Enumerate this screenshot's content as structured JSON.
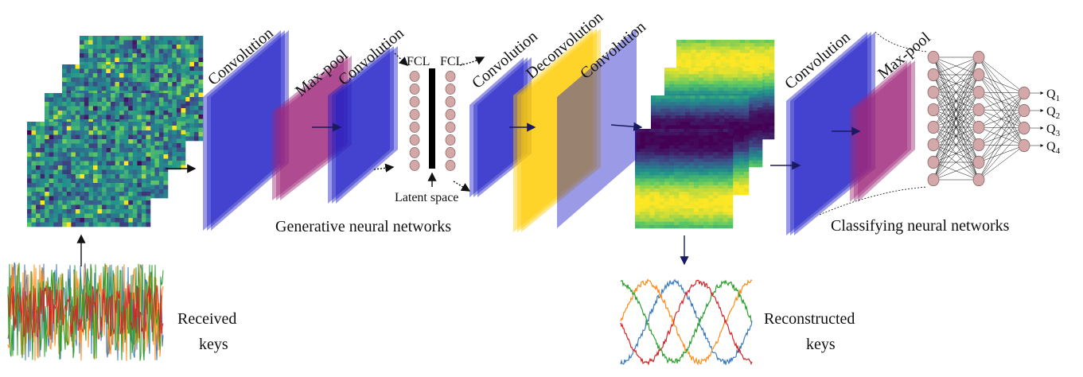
{
  "generative": {
    "title": "Generative neural networks",
    "layers": [
      "Convolution",
      "Max-pool",
      "Convolution",
      "FCL",
      "FCL",
      "Convolution",
      "Deconvolution",
      "Convolution"
    ],
    "latent": "Latent space"
  },
  "classifying": {
    "title": "Classifying neural networks",
    "layers": [
      "Convolution",
      "Max-pool"
    ],
    "outputs": [
      {
        "base": "Q",
        "sub": "1"
      },
      {
        "base": "Q",
        "sub": "2"
      },
      {
        "base": "Q",
        "sub": "3"
      },
      {
        "base": "Q",
        "sub": "4"
      }
    ]
  },
  "received": [
    "Received",
    "keys"
  ],
  "reconstructed": [
    "Reconstructed",
    "keys"
  ]
}
